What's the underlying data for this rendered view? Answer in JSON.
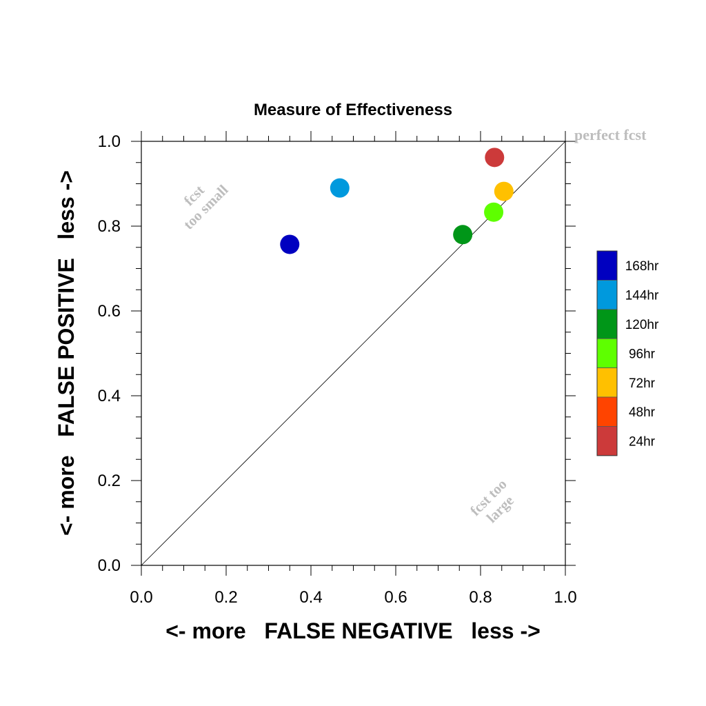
{
  "chart_data": {
    "type": "scatter",
    "title": "Measure of Effectiveness",
    "xlabel": "<- more   FALSE NEGATIVE   less ->",
    "ylabel": "<- more   FALSE POSITIVE   less ->",
    "xlim": [
      0.0,
      1.0
    ],
    "ylim": [
      0.0,
      1.0
    ],
    "x_ticks": [
      "0.0",
      "0.2",
      "0.4",
      "0.6",
      "0.8",
      "1.0"
    ],
    "y_ticks": [
      "0.0",
      "0.2",
      "0.4",
      "0.6",
      "0.8",
      "1.0"
    ],
    "grid": false,
    "diagonal": true,
    "legend_placement": "right",
    "annotations": {
      "perfect": "perfect fcst",
      "small_1": "fcst",
      "small_2": "too small",
      "large_1": "fcst too",
      "large_2": "large"
    },
    "series": [
      {
        "name": "168hr",
        "color": "#0000c0",
        "x": 0.35,
        "y": 0.757
      },
      {
        "name": "144hr",
        "color": "#0099dd",
        "x": 0.468,
        "y": 0.89
      },
      {
        "name": "120hr",
        "color": "#009618",
        "x": 0.758,
        "y": 0.78
      },
      {
        "name": "96hr",
        "color": "#5eff00",
        "x": 0.831,
        "y": 0.833
      },
      {
        "name": "72hr",
        "color": "#ffc000",
        "x": 0.855,
        "y": 0.882
      },
      {
        "name": "48hr",
        "color": "#ff4400",
        "x": null,
        "y": null
      },
      {
        "name": "24hr",
        "color": "#cc3a3a",
        "x": 0.833,
        "y": 0.962
      }
    ]
  }
}
